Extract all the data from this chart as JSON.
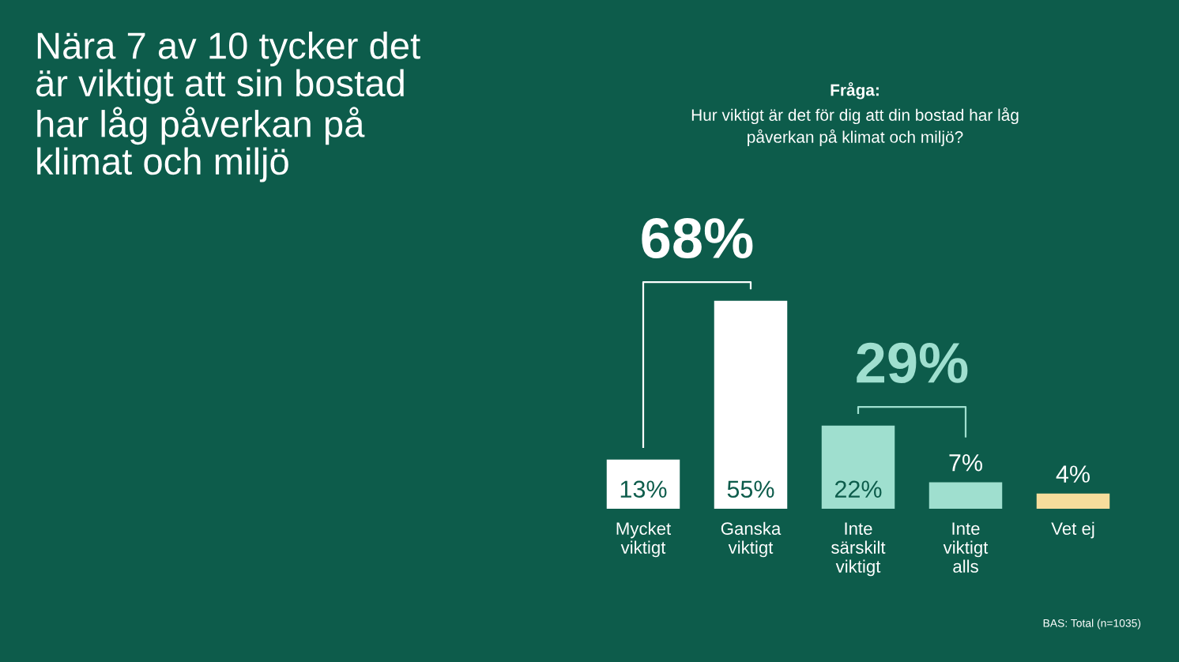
{
  "chart_data": {
    "type": "bar",
    "title": "Nära 7 av 10 tycker det\när viktigt att sin bostad\nhar låg påverkan på\nklimat och miljö",
    "subtitle": "Hur viktigt är det för dig att din bostad har låg\npåverkan på klimat och miljö?",
    "categories": [
      "Mycket\nviktigt",
      "Ganska\nviktigt",
      "Inte\nsärskilt\nviktigt",
      "Inte\nviktigt\nalls",
      "Vet ej"
    ],
    "values": [
      13,
      55,
      22,
      7,
      4
    ],
    "colors": [
      "#ffffff",
      "#ffffff",
      "#9fdfcf",
      "#9fdfcf",
      "#f6dd9c"
    ],
    "value_labels": [
      "13%",
      "55%",
      "22%",
      "7%",
      "4%"
    ],
    "annotations": [
      "Fråga:",
      "68%",
      "29%",
      "BAS: Total (n=1035)"
    ]
  }
}
